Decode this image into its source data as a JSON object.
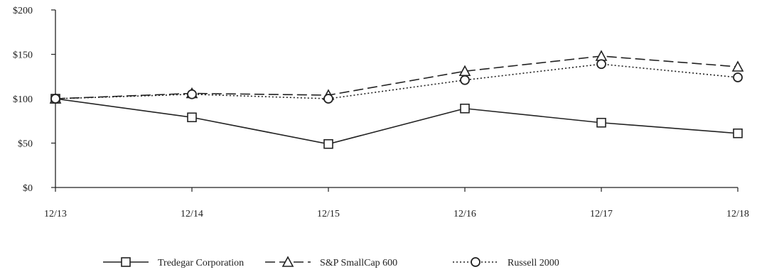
{
  "chart_data": {
    "type": "line",
    "title": "",
    "xlabel": "",
    "ylabel": "",
    "categories": [
      "12/13",
      "12/14",
      "12/15",
      "12/16",
      "12/17",
      "12/18"
    ],
    "ylim": [
      0,
      200
    ],
    "yticks": [
      {
        "value": 0,
        "label": "$0"
      },
      {
        "value": 50,
        "label": "$50"
      },
      {
        "value": 100,
        "label": "$100"
      },
      {
        "value": 150,
        "label": "$150"
      },
      {
        "value": 200,
        "label": "$200"
      }
    ],
    "grid": false,
    "legend_position": "bottom",
    "series": [
      {
        "name": "Tredegar Corporation",
        "marker": "square",
        "dash": "solid",
        "color": "#222222",
        "values": [
          100,
          79,
          49,
          89,
          73,
          61
        ]
      },
      {
        "name": "S&P SmallCap 600",
        "marker": "triangle",
        "dash": "dashed",
        "color": "#222222",
        "values": [
          100,
          106,
          104,
          131,
          148,
          136
        ]
      },
      {
        "name": "Russell 2000",
        "marker": "circle",
        "dash": "dotted",
        "color": "#222222",
        "values": [
          100,
          105,
          100,
          121,
          139,
          124
        ]
      }
    ]
  }
}
